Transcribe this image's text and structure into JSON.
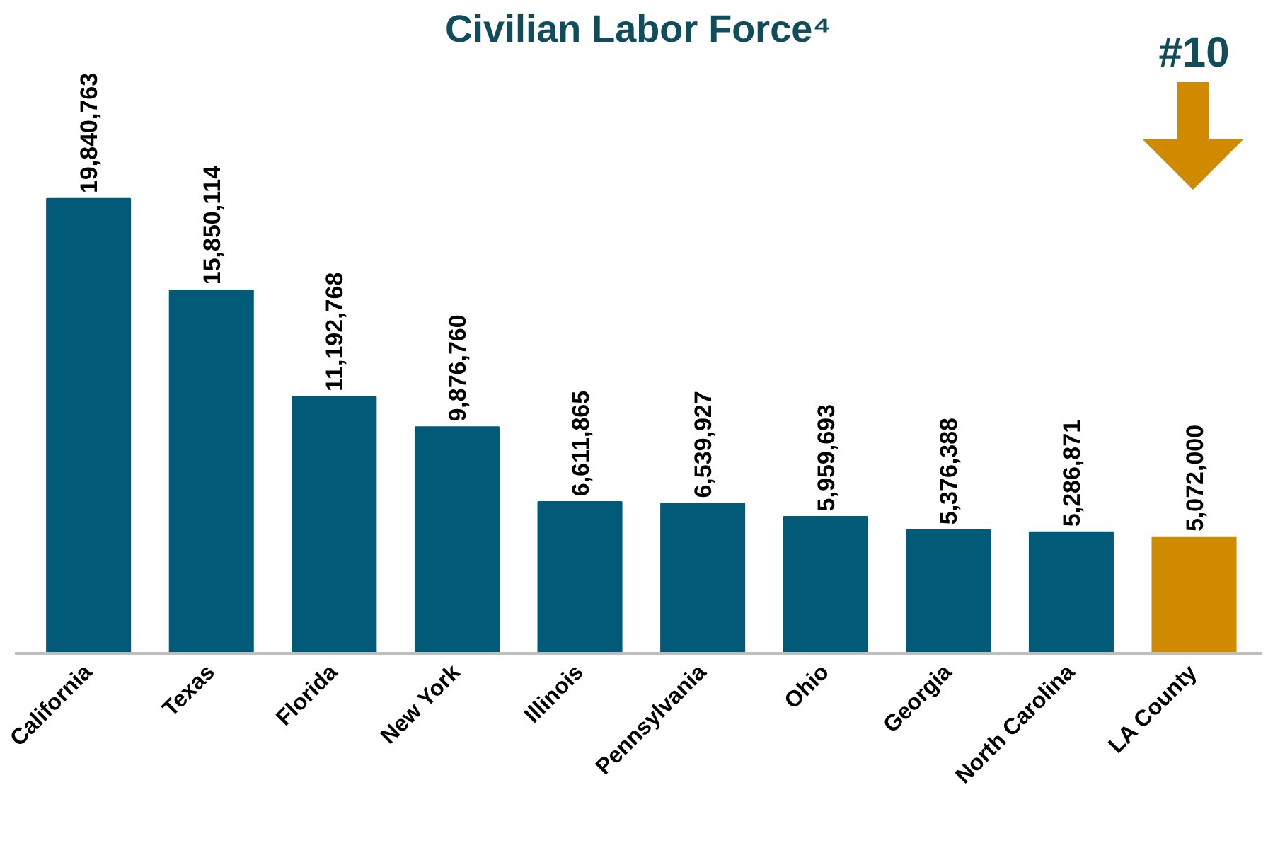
{
  "chart_data": {
    "type": "bar",
    "title": "Civilian Labor Force⁴",
    "categories": [
      "California",
      "Texas",
      "Florida",
      "New York",
      "Illinois",
      "Pennsylvania",
      "Ohio",
      "Georgia",
      "North Carolina",
      "LA County"
    ],
    "values": [
      19840763,
      15850114,
      11192768,
      9876760,
      6611865,
      6539927,
      5959693,
      5376388,
      5286871,
      5072000
    ],
    "colors": [
      "#005a78",
      "#005a78",
      "#005a78",
      "#005a78",
      "#005a78",
      "#005a78",
      "#005a78",
      "#005a78",
      "#005a78",
      "#d08a00"
    ],
    "value_labels": [
      "19,840,763",
      "15,850,114",
      "11,192,768",
      "9,876,760",
      "6,611,865",
      "6,539,927",
      "5,959,693",
      "5,376,388",
      "5,286,871",
      "5,072,000"
    ],
    "grid": false,
    "annotations": [
      "#10"
    ]
  }
}
